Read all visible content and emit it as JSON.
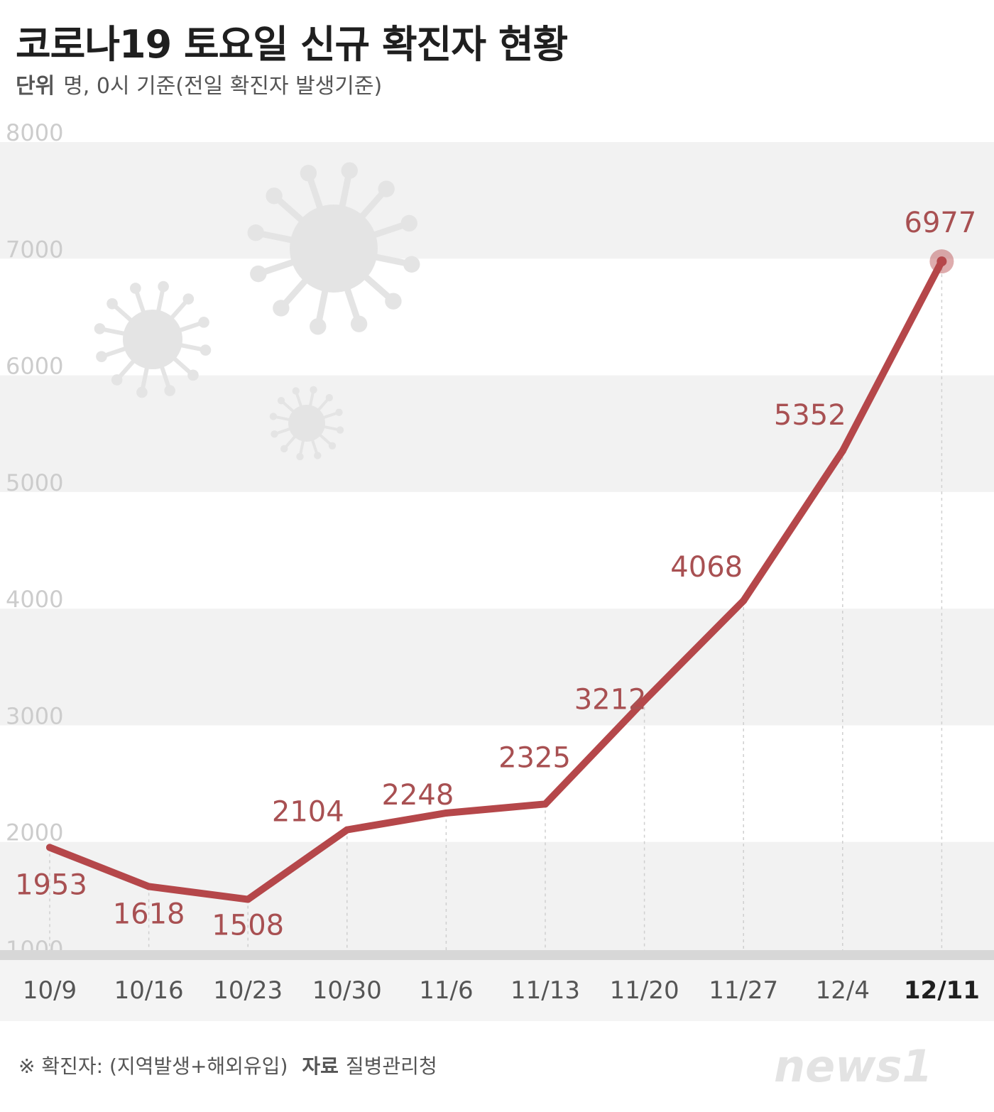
{
  "title": "코로나19 토요일 신규 확진자 현황",
  "subtitle": {
    "unit_label": "단위",
    "unit_text": "명, 0시 기준(전일 확진자 발생기준)"
  },
  "footer": {
    "note": "※ 확진자: (지역발생+해외유입)",
    "source_label": "자료",
    "source": "질병관리청"
  },
  "logo_text": "news1",
  "colors": {
    "line": "#b5474a",
    "label": "#a85052",
    "axis_text": "#555555",
    "band": "#f2f2f2",
    "gridlabel": "#cccccc"
  },
  "chart_data": {
    "type": "line",
    "x": [
      "10/9",
      "10/16",
      "10/23",
      "10/30",
      "11/6",
      "11/13",
      "11/20",
      "11/27",
      "12/4",
      "12/11"
    ],
    "series": [
      {
        "values": [
          1953,
          1618,
          1508,
          2104,
          2248,
          2325,
          3212,
          4068,
          5352,
          6977
        ],
        "labels": [
          "1953",
          "1618",
          "1508",
          "2104",
          "2248",
          "2325",
          "3212",
          "4068",
          "5352",
          "6977"
        ]
      }
    ],
    "y_ticks": [
      "1000",
      "2000",
      "3000",
      "4000",
      "5000",
      "6000",
      "7000",
      "8000"
    ],
    "ylim": [
      1000,
      8000
    ],
    "highlight_category": "12/11",
    "grid": "alternating bands"
  }
}
